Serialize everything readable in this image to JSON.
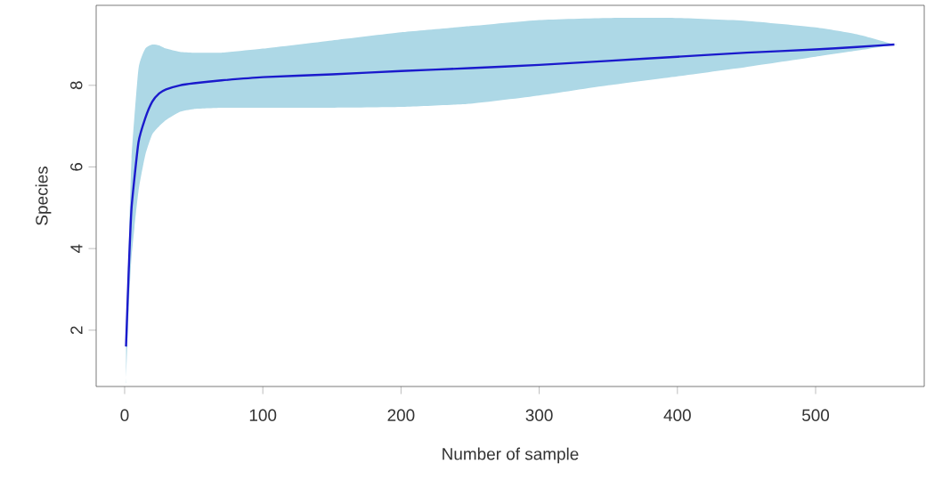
{
  "chart_data": {
    "type": "line",
    "xlabel": "Number of sample",
    "ylabel": "Species",
    "xlim": [
      -20.6,
      578.6
    ],
    "ylim": [
      0.62,
      9.96
    ],
    "xticks": [
      0,
      100,
      200,
      300,
      400,
      500
    ],
    "yticks": [
      2,
      4,
      6,
      8
    ],
    "series": [
      {
        "color": "#1a1acc",
        "x": [
          1,
          3,
          5,
          10,
          15,
          20,
          25,
          30,
          40,
          50,
          70,
          100,
          150,
          200,
          250,
          300,
          350,
          400,
          450,
          500,
          530,
          557
        ],
        "values": [
          1.6,
          3.5,
          5.0,
          6.6,
          7.2,
          7.6,
          7.8,
          7.9,
          8.0,
          8.05,
          8.12,
          8.2,
          8.27,
          8.35,
          8.42,
          8.5,
          8.6,
          8.7,
          8.8,
          8.88,
          8.94,
          9.0
        ],
        "upper": [
          1.9,
          4.0,
          6.2,
          8.4,
          8.9,
          9.0,
          8.98,
          8.9,
          8.82,
          8.8,
          8.8,
          8.9,
          9.1,
          9.3,
          9.45,
          9.6,
          9.65,
          9.65,
          9.58,
          9.42,
          9.25,
          9.0
        ],
        "lower": [
          0.7,
          2.5,
          3.8,
          5.4,
          6.3,
          6.8,
          7.0,
          7.15,
          7.35,
          7.42,
          7.45,
          7.45,
          7.45,
          7.47,
          7.55,
          7.75,
          8.0,
          8.22,
          8.45,
          8.7,
          8.85,
          9.0
        ]
      }
    ]
  }
}
